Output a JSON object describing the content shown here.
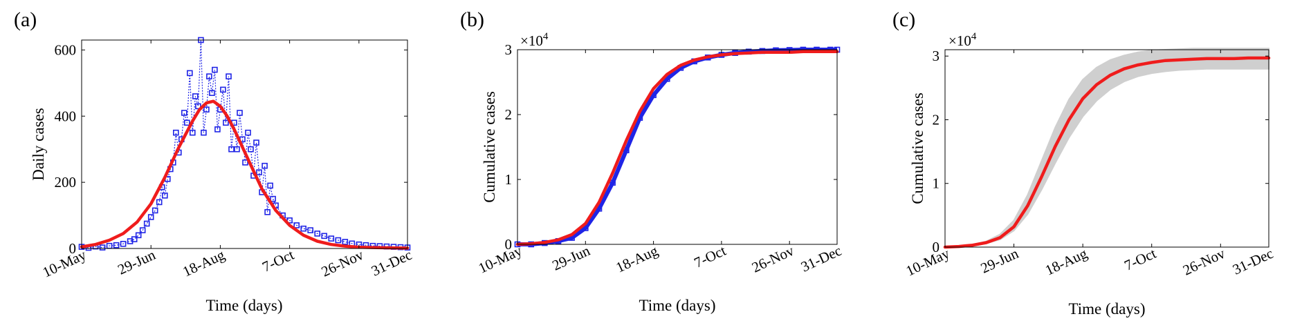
{
  "chart_data": [
    {
      "panel_label": "(a)",
      "type": "line",
      "xlabel": "Time (days)",
      "ylabel": "Daily cases",
      "x_ticks": [
        "10-May",
        "29-Jun",
        "18-Aug",
        "7-Oct",
        "26-Nov",
        "31-Dec"
      ],
      "x_tick_days": [
        0,
        50,
        100,
        150,
        200,
        235
      ],
      "xlim_days": [
        0,
        235
      ],
      "ylim": [
        0,
        630
      ],
      "y_ticks": [
        0,
        200,
        400,
        600
      ],
      "y_tick_labels": [
        "0",
        "200",
        "400",
        "600"
      ],
      "grid": false,
      "series": [
        {
          "style": "blue-squares-dotted",
          "color": "#1f24e6",
          "x_days": [
            0,
            5,
            10,
            15,
            20,
            25,
            30,
            35,
            38,
            41,
            44,
            47,
            50,
            53,
            56,
            58,
            60,
            62,
            64,
            66,
            68,
            70,
            72,
            74,
            76,
            78,
            80,
            82,
            84,
            86,
            88,
            90,
            92,
            94,
            96,
            98,
            100,
            102,
            104,
            106,
            108,
            110,
            112,
            114,
            116,
            118,
            120,
            122,
            124,
            126,
            128,
            130,
            132,
            134,
            136,
            138,
            140,
            145,
            150,
            155,
            160,
            165,
            170,
            175,
            180,
            185,
            190,
            195,
            200,
            205,
            210,
            215,
            220,
            225,
            230,
            235
          ],
          "y": [
            5,
            2,
            6,
            3,
            8,
            10,
            14,
            22,
            28,
            40,
            55,
            75,
            95,
            115,
            140,
            185,
            160,
            210,
            240,
            260,
            350,
            290,
            330,
            410,
            380,
            530,
            350,
            460,
            430,
            630,
            350,
            420,
            520,
            470,
            540,
            360,
            420,
            480,
            380,
            520,
            300,
            380,
            300,
            410,
            330,
            260,
            350,
            300,
            220,
            320,
            230,
            170,
            250,
            110,
            190,
            150,
            130,
            100,
            85,
            70,
            60,
            55,
            45,
            38,
            30,
            25,
            20,
            15,
            12,
            10,
            8,
            7,
            6,
            5,
            4,
            3
          ]
        },
        {
          "style": "red-line",
          "color": "#ef1c1c",
          "x_days": [
            0,
            10,
            20,
            30,
            40,
            50,
            60,
            70,
            80,
            85,
            90,
            95,
            100,
            105,
            110,
            120,
            130,
            140,
            150,
            160,
            170,
            180,
            190,
            200,
            210,
            220,
            235
          ],
          "y": [
            5,
            12,
            25,
            45,
            80,
            135,
            215,
            305,
            385,
            420,
            440,
            445,
            430,
            400,
            360,
            270,
            180,
            115,
            70,
            40,
            22,
            12,
            7,
            4,
            3,
            2,
            1
          ]
        }
      ]
    },
    {
      "panel_label": "(b)",
      "type": "line",
      "xlabel": "Time (days)",
      "ylabel": "Cumulative cases",
      "y_multiplier": "×10",
      "y_multiplier_exp": "4",
      "x_ticks": [
        "10-May",
        "29-Jun",
        "18-Aug",
        "7-Oct",
        "26-Nov",
        "31-Dec"
      ],
      "x_tick_days": [
        0,
        50,
        100,
        150,
        200,
        235
      ],
      "xlim_days": [
        0,
        235
      ],
      "ylim": [
        0,
        3
      ],
      "y_ticks": [
        0,
        1,
        2,
        3
      ],
      "y_tick_labels": [
        "0",
        "1",
        "2",
        "3"
      ],
      "grid": false,
      "series": [
        {
          "style": "blue-squares-dense",
          "color": "#1f24e6",
          "x_days": [
            0,
            10,
            20,
            30,
            40,
            50,
            60,
            70,
            80,
            90,
            100,
            110,
            120,
            130,
            140,
            150,
            160,
            170,
            180,
            190,
            200,
            210,
            220,
            230,
            235
          ],
          "y": [
            0.0,
            0.0,
            0.02,
            0.05,
            0.1,
            0.25,
            0.55,
            0.95,
            1.45,
            1.95,
            2.3,
            2.55,
            2.72,
            2.82,
            2.88,
            2.92,
            2.95,
            2.97,
            2.98,
            2.99,
            2.995,
            3.0,
            3.0,
            3.0,
            3.0
          ]
        },
        {
          "style": "red-line",
          "color": "#ef1c1c",
          "x_days": [
            0,
            10,
            20,
            30,
            40,
            50,
            60,
            70,
            80,
            90,
            100,
            110,
            120,
            130,
            140,
            150,
            160,
            170,
            180,
            190,
            200,
            210,
            220,
            235
          ],
          "y": [
            0.0,
            0.01,
            0.03,
            0.07,
            0.15,
            0.32,
            0.65,
            1.1,
            1.6,
            2.05,
            2.4,
            2.62,
            2.76,
            2.84,
            2.89,
            2.92,
            2.94,
            2.95,
            2.96,
            2.96,
            2.96,
            2.97,
            2.97,
            2.97
          ]
        }
      ]
    },
    {
      "panel_label": "(c)",
      "type": "area",
      "xlabel": "Time (days)",
      "ylabel": "Cumulative cases",
      "y_multiplier": "×10",
      "y_multiplier_exp": "4",
      "x_ticks": [
        "10-May",
        "29-Jun",
        "18-Aug",
        "7-Oct",
        "26-Nov",
        "31-Dec"
      ],
      "x_tick_days": [
        0,
        50,
        100,
        150,
        200,
        235
      ],
      "xlim_days": [
        0,
        235
      ],
      "ylim": [
        0,
        3.1
      ],
      "y_ticks": [
        0,
        1,
        2,
        3
      ],
      "y_tick_labels": [
        "0",
        "1",
        "2",
        "3"
      ],
      "grid": false,
      "band": {
        "color": "#cfcfcf",
        "x_days": [
          0,
          10,
          20,
          30,
          40,
          50,
          60,
          70,
          80,
          90,
          100,
          110,
          120,
          130,
          140,
          150,
          160,
          170,
          180,
          190,
          200,
          210,
          220,
          235
        ],
        "lower": [
          0.0,
          0.01,
          0.02,
          0.06,
          0.12,
          0.26,
          0.52,
          0.9,
          1.32,
          1.72,
          2.05,
          2.3,
          2.48,
          2.6,
          2.68,
          2.73,
          2.76,
          2.78,
          2.79,
          2.8,
          2.8,
          2.8,
          2.8,
          2.8
        ],
        "upper": [
          0.0,
          0.01,
          0.04,
          0.09,
          0.2,
          0.42,
          0.82,
          1.35,
          1.88,
          2.32,
          2.63,
          2.82,
          2.94,
          3.01,
          3.06,
          3.09,
          3.1,
          3.11,
          3.12,
          3.12,
          3.12,
          3.12,
          3.12,
          3.12
        ]
      },
      "series": [
        {
          "style": "red-line",
          "color": "#ef1c1c",
          "x_days": [
            0,
            10,
            20,
            30,
            40,
            50,
            60,
            70,
            80,
            90,
            100,
            110,
            120,
            130,
            140,
            150,
            160,
            170,
            180,
            190,
            200,
            210,
            220,
            235
          ],
          "y": [
            0.0,
            0.01,
            0.03,
            0.07,
            0.15,
            0.32,
            0.65,
            1.1,
            1.58,
            2.0,
            2.33,
            2.55,
            2.7,
            2.8,
            2.86,
            2.9,
            2.93,
            2.94,
            2.95,
            2.96,
            2.96,
            2.96,
            2.97,
            2.97
          ]
        }
      ]
    }
  ]
}
